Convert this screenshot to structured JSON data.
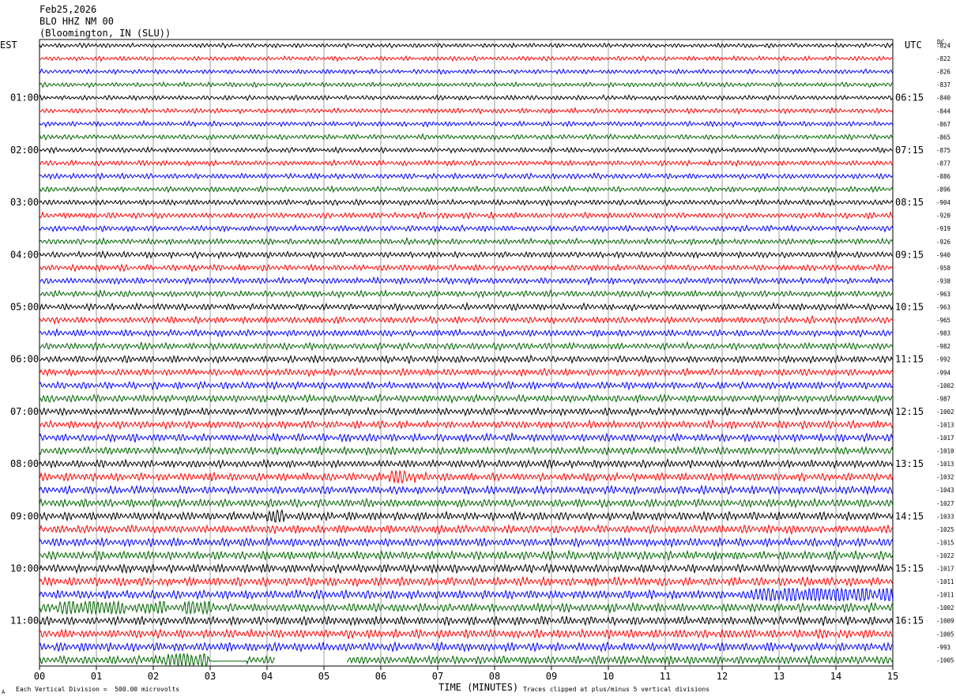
{
  "header": {
    "date": "Feb25,2026",
    "station": "BLO HHZ NM 00",
    "location": "(Bloomington, IN (SLU))"
  },
  "tz_left": "EST",
  "tz_right": "UTC",
  "dc_label": "DC",
  "footer": {
    "scale": "Each Vertical Division =  500.00 microvolts",
    "xlabel": "TIME (MINUTES)",
    "clip_note": "Traces clipped at plus/minus 5 vertical divisions",
    "corner_mark": "A"
  },
  "chart_data": {
    "type": "line",
    "title": "BLO HHZ NM 00",
    "xlabel": "TIME (MINUTES)",
    "xlim": [
      0,
      15
    ],
    "x_ticks": [
      "00",
      "01",
      "02",
      "03",
      "04",
      "05",
      "06",
      "07",
      "08",
      "09",
      "10",
      "11",
      "12",
      "13",
      "14",
      "15"
    ],
    "trace_minutes": 15,
    "trace_colors": [
      "#000000",
      "#ff0000",
      "#0000ff",
      "#006400"
    ],
    "est_labels": [
      "01:00",
      "02:00",
      "03:00",
      "04:00",
      "05:00",
      "06:00",
      "07:00",
      "08:00",
      "09:00",
      "10:00",
      "11:00"
    ],
    "utc_labels": [
      "06:15",
      "07:15",
      "08:15",
      "09:15",
      "10:15",
      "11:15",
      "12:15",
      "13:15",
      "14:15",
      "15:15",
      "16:15"
    ],
    "dc_offsets": [
      -824,
      -822,
      -826,
      -837,
      -840,
      -844,
      -867,
      -865,
      -875,
      -877,
      -886,
      -896,
      -904,
      -920,
      -919,
      -926,
      -940,
      -958,
      -938,
      -963,
      -963,
      -965,
      -983,
      -982,
      -992,
      -994,
      -1002,
      -987,
      -1002,
      -1013,
      -1017,
      -1010,
      -1013,
      -1032,
      -1043,
      -1027,
      -1033,
      -1025,
      -1015,
      -1022,
      -1017,
      -1011,
      -1011,
      -1002,
      -1009,
      -1005,
      -993,
      -1005
    ],
    "events": [
      {
        "trace": 33,
        "start_min": 6.15,
        "end_min": 6.6
      },
      {
        "trace": 36,
        "start_min": 4.0,
        "end_min": 4.3
      },
      {
        "trace": 42,
        "start_min": 12.5,
        "end_min": 15.0
      },
      {
        "trace": 43,
        "start_min": 0.3,
        "end_min": 1.5
      },
      {
        "trace": 43,
        "start_min": 1.85,
        "end_min": 2.2
      },
      {
        "trace": 43,
        "start_min": 2.55,
        "end_min": 3.0
      },
      {
        "trace": 47,
        "start_min": 2.2,
        "end_min": 2.95
      }
    ],
    "gaps": [
      {
        "trace": 47,
        "start_min": 4.15,
        "end_min": 5.4
      }
    ],
    "flat_segments": [
      {
        "trace": 47,
        "start_min": 3.0,
        "end_min": 3.65
      }
    ]
  }
}
